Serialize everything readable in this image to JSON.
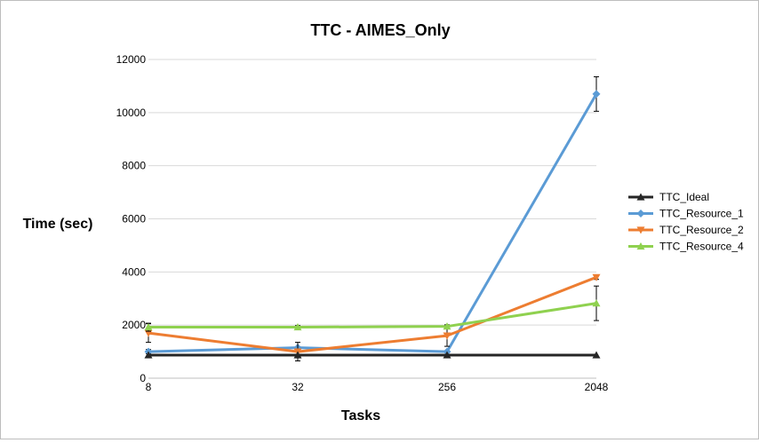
{
  "chart_data": {
    "type": "line",
    "title": "TTC - AIMES_Only",
    "xlabel": "Tasks",
    "ylabel": "Time (sec)",
    "categories": [
      "8",
      "32",
      "256",
      "2048"
    ],
    "ylim": [
      0,
      12000
    ],
    "yticks": [
      "0",
      "2000",
      "4000",
      "6000",
      "8000",
      "10000",
      "12000"
    ],
    "grid": true,
    "legend_position": "right",
    "series": [
      {
        "name": "TTC_Ideal",
        "values": [
          870,
          870,
          870,
          870
        ],
        "color": "#262626",
        "marker": "triangle-up",
        "errors": [
          0,
          0,
          0,
          0
        ]
      },
      {
        "name": "TTC_Resource_1",
        "values": [
          1000,
          1150,
          1000,
          10700
        ],
        "color": "#5b9bd5",
        "marker": "diamond",
        "errors": [
          80,
          0,
          0,
          650
        ]
      },
      {
        "name": "TTC_Resource_2",
        "values": [
          1700,
          1000,
          1600,
          3800
        ],
        "color": "#ed7d31",
        "marker": "triangle-down",
        "errors": [
          350,
          350,
          400,
          80
        ]
      },
      {
        "name": "TTC_Resource_4",
        "values": [
          1920,
          1920,
          1950,
          2820
        ],
        "color": "#8fd14f",
        "marker": "triangle-up",
        "errors": [
          150,
          60,
          60,
          650
        ]
      }
    ]
  }
}
